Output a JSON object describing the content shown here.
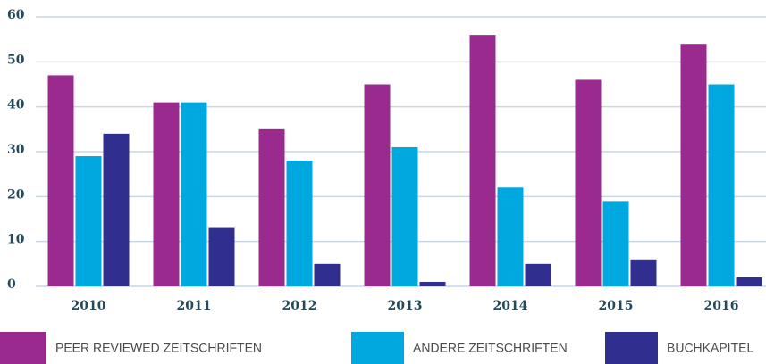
{
  "chart_data": {
    "type": "bar",
    "categories": [
      "2010",
      "2011",
      "2012",
      "2013",
      "2014",
      "2015",
      "2016"
    ],
    "series": [
      {
        "name": "PEER REVIEWED ZEITSCHRIFTEN",
        "color": "#9b2a8f",
        "values": [
          47,
          41,
          35,
          45,
          56,
          46,
          54
        ]
      },
      {
        "name": "ANDERE ZEITSCHRIFTEN",
        "color": "#00a8e0",
        "values": [
          29,
          41,
          28,
          31,
          22,
          19,
          45
        ]
      },
      {
        "name": "BUCHKAPITEL",
        "color": "#302f8f",
        "values": [
          34,
          13,
          5,
          1,
          5,
          6,
          2
        ]
      }
    ],
    "ylim": [
      0,
      60
    ],
    "yticks": [
      0,
      10,
      20,
      30,
      40,
      50,
      60
    ],
    "grid": true,
    "legend": "bottom"
  }
}
